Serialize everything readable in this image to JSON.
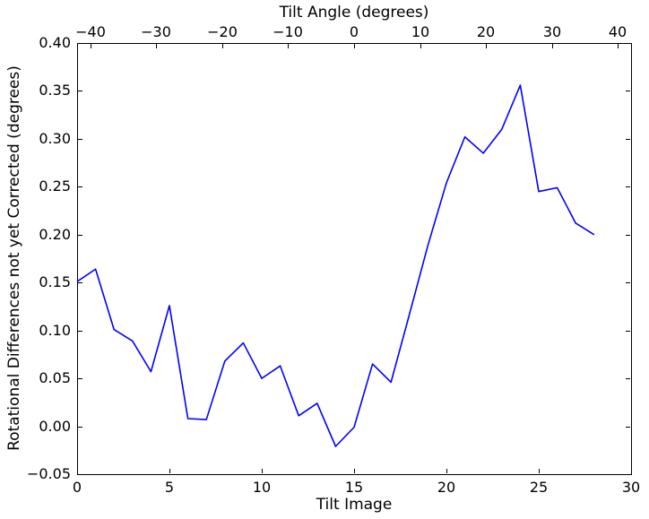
{
  "chart_data": {
    "type": "line",
    "xlabel": "Tilt Image",
    "ylabel": "Rotational Differences not yet Corrected (degrees)",
    "top_axis": {
      "label": "Tilt Angle (degrees)",
      "lim": [
        -42,
        42
      ],
      "tick_values": [
        -40,
        -30,
        -20,
        -10,
        0,
        10,
        20,
        30,
        40
      ],
      "tick_labels": [
        "−40",
        "−30",
        "−20",
        "−10",
        "0",
        "10",
        "20",
        "30",
        "40"
      ]
    },
    "xlim": [
      0,
      30
    ],
    "ylim": [
      -0.05,
      0.4
    ],
    "x_ticks": {
      "values": [
        0,
        5,
        10,
        15,
        20,
        25,
        30
      ],
      "labels": [
        "0",
        "5",
        "10",
        "15",
        "20",
        "25",
        "30"
      ]
    },
    "y_ticks": {
      "values": [
        0.4,
        0.35,
        0.3,
        0.25,
        0.2,
        0.15,
        0.1,
        0.05,
        0.0,
        -0.05
      ],
      "labels": [
        "0.40",
        "0.35",
        "0.30",
        "0.25",
        "0.20",
        "0.15",
        "0.10",
        "0.05",
        "0.00",
        "−0.05"
      ]
    },
    "grid": false,
    "legend": null,
    "line_color": "#0000ff",
    "axis_color": "#000000",
    "background_color": "#ffffff",
    "x": [
      0,
      1,
      2,
      3,
      4,
      5,
      6,
      7,
      8,
      9,
      10,
      11,
      12,
      13,
      14,
      15,
      16,
      17,
      18,
      19,
      20,
      21,
      22,
      23,
      24,
      25,
      26,
      27,
      28
    ],
    "y": [
      0.151,
      0.164,
      0.101,
      0.089,
      0.057,
      0.126,
      0.008,
      0.007,
      0.068,
      0.087,
      0.05,
      0.063,
      0.011,
      0.024,
      -0.021,
      -0.001,
      0.065,
      0.046,
      0.117,
      0.189,
      0.254,
      0.302,
      0.285,
      0.31,
      0.356,
      0.245,
      0.249,
      0.212,
      0.2
    ]
  }
}
